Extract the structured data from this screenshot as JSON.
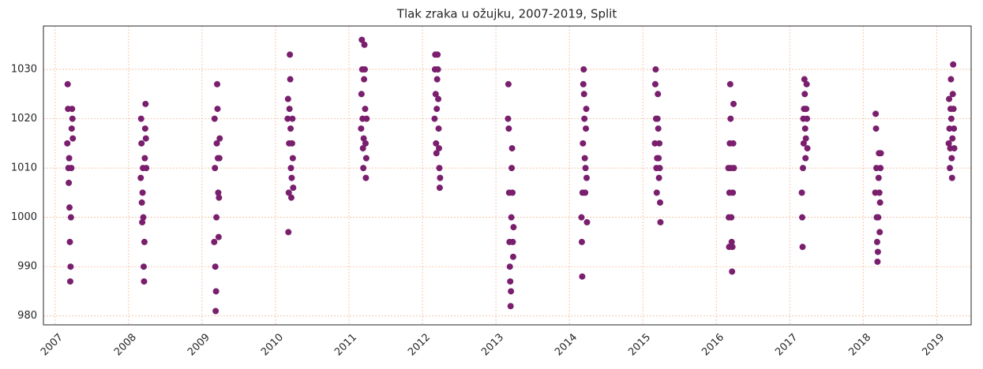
{
  "chart_data": {
    "type": "scatter",
    "title": "Tlak zraka u ožujku, 2007-2019, Split",
    "color": "#7a1f6e",
    "grid": true,
    "xlim": [
      2006.84,
      2019.47
    ],
    "ylim": [
      978.2,
      1038.8
    ],
    "xticks": [
      2007,
      2008,
      2009,
      2010,
      2011,
      2012,
      2013,
      2014,
      2015,
      2016,
      2017,
      2018,
      2019
    ],
    "yticks": [
      980,
      990,
      1000,
      1010,
      1020,
      1030
    ],
    "x": [
      2007.165,
      2007.17,
      2007.175,
      2007.18,
      2007.185,
      2007.19,
      2007.195,
      2007.2,
      2007.205,
      2007.21,
      2007.215,
      2007.22,
      2007.225,
      2007.23,
      2007.235,
      2007.24,
      2008.165,
      2008.17,
      2008.175,
      2008.18,
      2008.185,
      2008.19,
      2008.195,
      2008.2,
      2008.205,
      2008.21,
      2008.215,
      2008.22,
      2008.225,
      2008.23,
      2008.235,
      2008.24,
      2009.165,
      2009.17,
      2009.175,
      2009.18,
      2009.185,
      2009.19,
      2009.195,
      2009.2,
      2009.205,
      2009.21,
      2009.215,
      2009.22,
      2009.225,
      2009.23,
      2009.235,
      2009.24,
      2010.165,
      2010.17,
      2010.175,
      2010.18,
      2010.185,
      2010.19,
      2010.195,
      2010.2,
      2010.205,
      2010.21,
      2010.215,
      2010.22,
      2010.225,
      2010.23,
      2010.235,
      2010.24,
      2011.165,
      2011.17,
      2011.175,
      2011.18,
      2011.185,
      2011.19,
      2011.195,
      2011.2,
      2011.205,
      2011.21,
      2011.215,
      2011.22,
      2011.225,
      2011.23,
      2011.235,
      2011.24,
      2012.165,
      2012.17,
      2012.175,
      2012.18,
      2012.185,
      2012.19,
      2012.195,
      2012.2,
      2012.205,
      2012.21,
      2012.215,
      2012.22,
      2012.225,
      2012.23,
      2012.235,
      2012.24,
      2013.165,
      2013.17,
      2013.175,
      2013.18,
      2013.185,
      2013.19,
      2013.195,
      2013.2,
      2013.205,
      2013.21,
      2013.215,
      2013.22,
      2013.225,
      2013.23,
      2013.235,
      2013.24,
      2014.165,
      2014.17,
      2014.175,
      2014.18,
      2014.185,
      2014.19,
      2014.195,
      2014.2,
      2014.205,
      2014.21,
      2014.215,
      2014.22,
      2014.225,
      2014.23,
      2014.235,
      2014.24,
      2015.165,
      2015.17,
      2015.175,
      2015.18,
      2015.185,
      2015.19,
      2015.195,
      2015.2,
      2015.205,
      2015.21,
      2015.215,
      2015.22,
      2015.225,
      2015.23,
      2015.235,
      2015.24,
      2016.165,
      2016.17,
      2016.175,
      2016.18,
      2016.185,
      2016.19,
      2016.195,
      2016.2,
      2016.205,
      2016.21,
      2016.215,
      2016.22,
      2016.225,
      2016.23,
      2016.235,
      2016.24,
      2017.165,
      2017.17,
      2017.175,
      2017.18,
      2017.185,
      2017.19,
      2017.195,
      2017.2,
      2017.205,
      2017.21,
      2017.215,
      2017.22,
      2017.225,
      2017.23,
      2017.235,
      2017.24,
      2018.165,
      2018.17,
      2018.175,
      2018.18,
      2018.185,
      2018.19,
      2018.195,
      2018.2,
      2018.205,
      2018.21,
      2018.215,
      2018.22,
      2018.225,
      2018.23,
      2018.235,
      2018.24,
      2019.165,
      2019.17,
      2019.175,
      2019.18,
      2019.185,
      2019.19,
      2019.195,
      2019.2,
      2019.205,
      2019.21,
      2019.215,
      2019.22,
      2019.225,
      2019.23,
      2019.235,
      2019.24
    ],
    "values": [
      1015,
      1027,
      1022,
      1010,
      1007,
      1012,
      1002,
      995,
      987,
      990,
      1000,
      1010,
      1018,
      1022,
      1020,
      1016,
      1008,
      1020,
      1015,
      1003,
      999,
      1005,
      1010,
      1000,
      990,
      987,
      995,
      1012,
      1018,
      1023,
      1016,
      1010,
      995,
      1020,
      1010,
      990,
      981,
      985,
      1000,
      1015,
      1027,
      1022,
      1012,
      1005,
      996,
      1004,
      1012,
      1016,
      1020,
      1024,
      997,
      1005,
      1015,
      1022,
      1033,
      1028,
      1018,
      1010,
      1004,
      1008,
      1015,
      1020,
      1012,
      1006,
      1018,
      1025,
      1036,
      1030,
      1020,
      1014,
      1010,
      1016,
      1028,
      1035,
      1030,
      1022,
      1015,
      1008,
      1012,
      1020,
      1020,
      1030,
      1033,
      1025,
      1015,
      1013,
      1022,
      1028,
      1033,
      1030,
      1024,
      1018,
      1014,
      1010,
      1006,
      1008,
      1020,
      1027,
      1018,
      1005,
      995,
      990,
      987,
      982,
      985,
      1000,
      1010,
      1014,
      1005,
      995,
      992,
      998,
      1000,
      995,
      988,
      1005,
      1015,
      1027,
      1030,
      1025,
      1020,
      1012,
      1005,
      1010,
      1018,
      1022,
      1008,
      999,
      1015,
      1027,
      1030,
      1020,
      1010,
      1005,
      1012,
      1020,
      1025,
      1018,
      1012,
      1008,
      1015,
      1010,
      1003,
      999,
      1010,
      1000,
      994,
      1005,
      1015,
      1027,
      1020,
      1010,
      1000,
      995,
      989,
      994,
      1005,
      1015,
      1023,
      1010,
      1005,
      1000,
      994,
      1010,
      1020,
      1015,
      1022,
      1028,
      1025,
      1018,
      1012,
      1016,
      1022,
      1027,
      1020,
      1014,
      1005,
      1021,
      1018,
      1010,
      1000,
      995,
      991,
      993,
      1000,
      1008,
      1013,
      1005,
      997,
      1003,
      1010,
      1013,
      1015,
      1024,
      1018,
      1010,
      1014,
      1022,
      1028,
      1020,
      1012,
      1008,
      1016,
      1025,
      1031,
      1022,
      1018,
      1014
    ]
  }
}
